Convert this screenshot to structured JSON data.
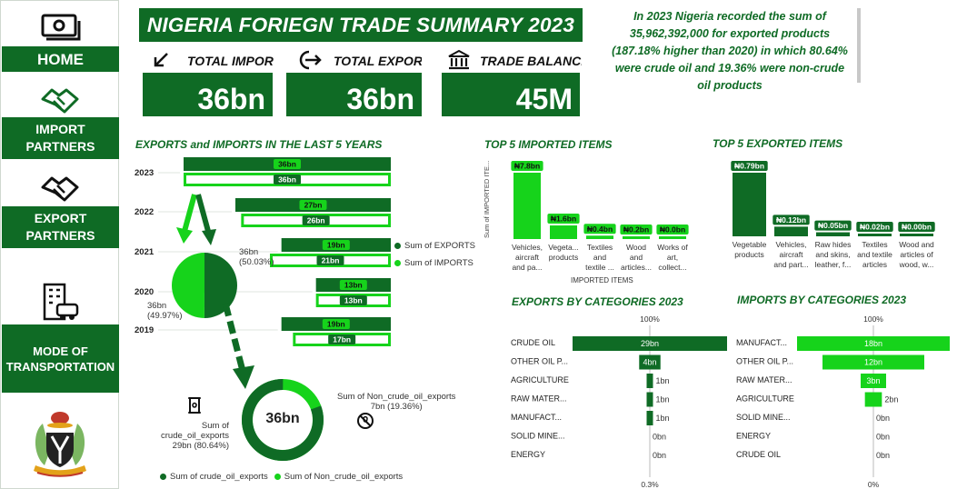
{
  "sidebar": {
    "home_label": "HOME",
    "import_partners_label": "IMPORT PARTNERS",
    "export_partners_label": "EXPORT PARTNERS",
    "transport_label": "MODE OF TRANSPORTATION",
    "icons": [
      "money-icon",
      "handshake-icon",
      "handshake-icon",
      "building-car-icon",
      "coat-of-arms"
    ]
  },
  "header": {
    "title": "NIGERIA FORIEGN TRADE SUMMARY 2023",
    "summary": "In 2023 Nigeria recorded the sum of 35,962,392,000 for exported products (187.18% higher than 2020) in which 80.64% were crude oil and 19.36% were non-crude oil products"
  },
  "kpis": {
    "total_import_label": "TOTAL IMPORT",
    "total_import_value": "36bn",
    "total_export_label": "TOTAL EXPORT",
    "total_export_value": "36bn",
    "trade_balance_label": "TRADE BALANCE",
    "trade_balance_value": "45M"
  },
  "exports_imports_5y": {
    "title": "EXPORTS and IMPORTS IN THE LAST 5 YEARS",
    "years": [
      "2023",
      "2022",
      "2021",
      "2020",
      "2019"
    ],
    "exports": [
      36,
      27,
      19,
      13,
      19
    ],
    "imports": [
      36,
      26,
      21,
      13,
      17
    ],
    "exports_labels": [
      "36bn",
      "27bn",
      "19bn",
      "13bn",
      "19bn"
    ],
    "imports_labels": [
      "36bn",
      "26bn",
      "21bn",
      "13bn",
      "17bn"
    ],
    "legend_exports": "Sum of EXPORTS",
    "legend_imports": "Sum of IMPORTS",
    "colors": {
      "exports": "#0f6b25",
      "imports": "#16d31b"
    }
  },
  "pie_2021": {
    "exports_label": "36bn",
    "exports_pct": "(50.03%)",
    "imports_label": "36bn",
    "imports_pct": "(49.97%)",
    "exports_share": 50.03,
    "imports_share": 49.97
  },
  "donut": {
    "center_label": "36bn",
    "crude_label": "Sum of crude_oil_exports",
    "crude_value": "29bn (80.64%)",
    "non_crude_label": "Sum of Non_crude_oil_exports",
    "non_crude_value": "7bn (19.36%)",
    "crude_share": 80.64,
    "non_crude_share": 19.36,
    "legend_crude": "Sum of crude_oil_exports",
    "legend_non_crude": "Sum of Non_crude_oil_exports"
  },
  "top_imported": {
    "title": "TOP 5 IMPORTED ITEMS",
    "y_axis_label": "Sum of IMPORTED ITE...",
    "x_axis_label": "IMPORTED ITEMS",
    "values": [
      7.8,
      1.6,
      0.4,
      0.2,
      0.0
    ],
    "value_labels": [
      "₦7.8bn",
      "₦1.6bn",
      "₦0.4bn",
      "₦0.2bn",
      "₦0.0bn"
    ],
    "categories": [
      [
        "Vehicles,",
        "aircraft",
        "and pa..."
      ],
      [
        "Vegeta...",
        "products"
      ],
      [
        "Textiles",
        "and",
        "textile ..."
      ],
      [
        "Wood",
        "and",
        "articles..."
      ],
      [
        "Works of",
        "art,",
        "collect..."
      ]
    ]
  },
  "top_exported": {
    "title": "TOP 5 EXPORTED ITEMS",
    "values": [
      0.79,
      0.12,
      0.05,
      0.02,
      0.0
    ],
    "value_labels": [
      "₦0.79bn",
      "₦0.12bn",
      "₦0.05bn",
      "₦0.02bn",
      "₦0.00bn"
    ],
    "categories": [
      [
        "Vegetable",
        "products"
      ],
      [
        "Vehicles,",
        "aircraft",
        "and part..."
      ],
      [
        "Raw hides",
        "and skins,",
        "leather, f..."
      ],
      [
        "Textiles",
        "and textile",
        "articles"
      ],
      [
        "Wood and",
        "articles of",
        "wood, w..."
      ]
    ]
  },
  "exports_by_cat": {
    "title": "EXPORTS BY CATEGORIES 2023",
    "top_label": "100%",
    "bottom_label": "0.3%",
    "categories": [
      "CRUDE OIL",
      "OTHER OIL P...",
      "AGRICULTURE",
      "RAW MATER...",
      "MANUFACT...",
      "SOLID MINE...",
      "ENERGY"
    ],
    "values": [
      29,
      4,
      1,
      1,
      1,
      0,
      0
    ],
    "value_labels": [
      "29bn",
      "4bn",
      "1bn",
      "1bn",
      "1bn",
      "0bn",
      "0bn"
    ]
  },
  "imports_by_cat": {
    "title": "IMPORTS BY CATEGORIES 2023",
    "top_label": "100%",
    "bottom_label": "0%",
    "categories": [
      "MANUFACT...",
      "OTHER OIL P...",
      "RAW MATER...",
      "AGRICULTURE",
      "SOLID MINE...",
      "ENERGY",
      "CRUDE OIL"
    ],
    "values": [
      18,
      12,
      3,
      2,
      0,
      0,
      0
    ],
    "value_labels": [
      "18bn",
      "12bn",
      "3bn",
      "2bn",
      "0bn",
      "0bn",
      "0bn"
    ]
  }
}
